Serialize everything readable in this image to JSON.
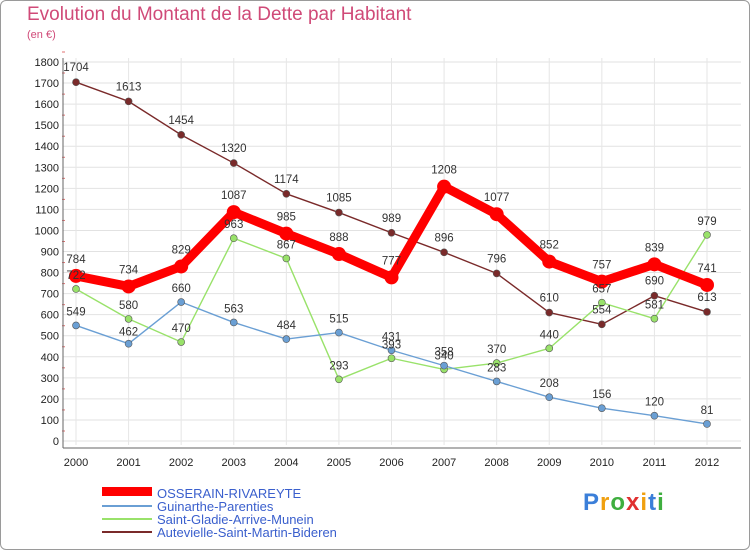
{
  "chart_data": {
    "type": "line",
    "title": "Evolution du Montant de la Dette par Habitant",
    "subtitle": "(en €)",
    "xlabel": "",
    "ylabel": "",
    "x": [
      "2000",
      "2001",
      "2002",
      "2003",
      "2004",
      "2005",
      "2006",
      "2007",
      "2008",
      "2009",
      "2010",
      "2011",
      "2012"
    ],
    "ylim": [
      0,
      1800
    ],
    "yticks": [
      0,
      100,
      200,
      300,
      400,
      500,
      600,
      700,
      800,
      900,
      1000,
      1100,
      1200,
      1300,
      1400,
      1500,
      1600,
      1700,
      1800
    ],
    "grid": true,
    "legend_position": "bottom-left",
    "series": [
      {
        "name": "OSSERAIN-RIVAREYTE",
        "color": "#ff0000",
        "values": [
          784,
          734,
          829,
          1087,
          985,
          888,
          777,
          1208,
          1077,
          852,
          757,
          839,
          741
        ]
      },
      {
        "name": "Guinarthe-Parenties",
        "color": "#6a9fd4",
        "values": [
          549,
          462,
          660,
          563,
          484,
          515,
          431,
          358,
          283,
          208,
          156,
          120,
          81
        ]
      },
      {
        "name": "Saint-Gladie-Arrive-Munein",
        "color": "#99e26a",
        "values": [
          722,
          580,
          470,
          963,
          867,
          293,
          393,
          340,
          370,
          440,
          657,
          581,
          979
        ]
      },
      {
        "name": "Autevielle-Saint-Martin-Bideren",
        "color": "#7a2a2a",
        "values": [
          1704,
          1613,
          1454,
          1320,
          1174,
          1085,
          989,
          896,
          796,
          610,
          554,
          690,
          613
        ]
      }
    ]
  },
  "brand": {
    "letters": [
      "P",
      "r",
      "o",
      "x",
      "i",
      "t",
      "i"
    ],
    "colors": [
      "#3b7fd9",
      "#f0a010",
      "#3fae3f",
      "#e03030",
      "#f0a010",
      "#3b7fd9",
      "#3fae3f"
    ]
  }
}
